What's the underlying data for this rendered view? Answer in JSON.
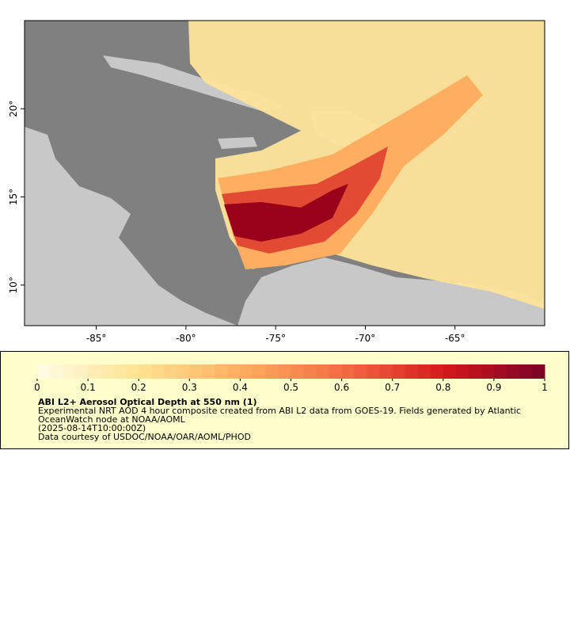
{
  "map": {
    "xlim": [
      -89,
      -60
    ],
    "ylim": [
      7.7,
      25
    ],
    "xticks": [
      {
        "value": -85,
        "label": "-85°"
      },
      {
        "value": -80,
        "label": "-80°"
      },
      {
        "value": -75,
        "label": "-75°"
      },
      {
        "value": -70,
        "label": "-70°"
      },
      {
        "value": -65,
        "label": "-65°"
      }
    ],
    "yticks": [
      {
        "value": 20,
        "label": "20°"
      },
      {
        "value": 15,
        "label": "15°"
      },
      {
        "value": 10,
        "label": "10°"
      }
    ]
  },
  "colorbar": {
    "lim": [
      0,
      1
    ],
    "ticks": [
      0,
      0.1,
      0.2,
      0.3,
      0.4,
      0.5,
      0.6,
      0.7,
      0.8,
      0.9,
      1
    ],
    "colors": [
      "#fffbe6",
      "#fee391",
      "#fdae61",
      "#f46d43",
      "#d7191c",
      "#7a0026"
    ],
    "title": "ABI L2+ Aerosol Optical Depth at 550 nm (1)",
    "lines": [
      "Experimental NRT AOD 4 hour composite created from ABI L2 data from GOES-19. Fields generated by Atlantic",
      "OceanWatch node at NOAA/AOML",
      "(2025-08-14T10:00:00Z)",
      "Data courtesy of USDOC/NOAA/OAR/AOML/PHOD"
    ]
  }
}
